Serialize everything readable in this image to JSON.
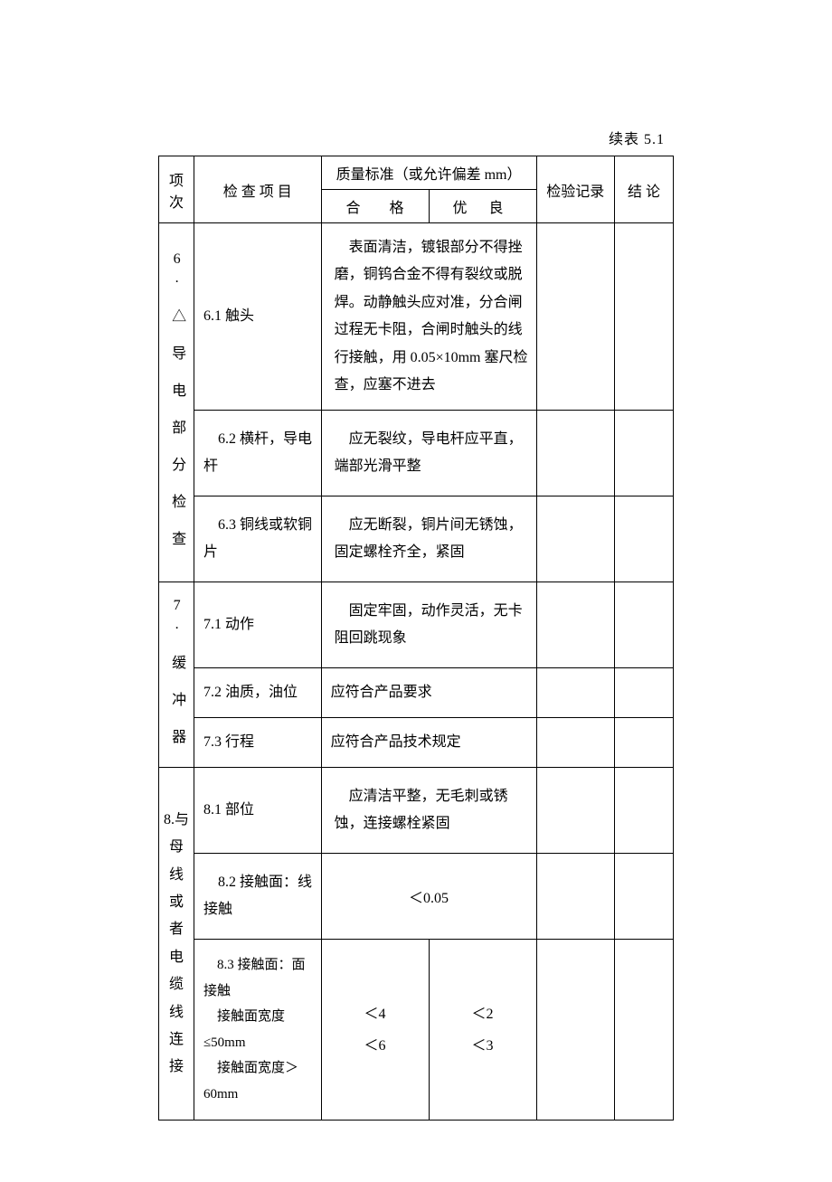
{
  "caption": "续表 5.1",
  "header": {
    "section": "项次",
    "item": "检 查 项 目",
    "standard": "质量标准（或允许偏差 mm）",
    "qualified": "合  格",
    "good": "优  良",
    "record": "检验记录",
    "result": "结 论"
  },
  "section6": {
    "title": "6.\n△\n导\n电\n部\n分\n检\n查",
    "r1": {
      "item": "6.1 触头",
      "std": "　表面清洁，镀银部分不得挫磨，铜钨合金不得有裂纹或脱焊。动静触头应对准，分合闸过程无卡阻，合闸时触头的线行接触，用 0.05×10mm 塞尺检查，应塞不进去"
    },
    "r2": {
      "item": "　6.2 横杆，导电杆",
      "std": "　应无裂纹，导电杆应平直，端部光滑平整"
    },
    "r3": {
      "item": "　6.3 铜线或软铜片",
      "std": "　应无断裂，铜片间无锈蚀，固定螺栓齐全，紧固"
    }
  },
  "section7": {
    "title": "7.\n缓\n冲\n器",
    "r1": {
      "item": "7.1 动作",
      "std": "　固定牢固，动作灵活，无卡阻回跳现象"
    },
    "r2": {
      "item": "7.2 油质，油位",
      "std": "应符合产品要求"
    },
    "r3": {
      "item": "7.3 行程",
      "std": "应符合产品技术规定"
    }
  },
  "section8": {
    "title": "8.与\n母线\n或者\n电缆\n线连\n接",
    "r1": {
      "item": "8.1 部位",
      "std": "　应清洁平整，无毛刺或锈蚀，连接螺栓紧固"
    },
    "r2": {
      "item": "　8.2 接触面：线接触",
      "std": "＜0.05"
    },
    "r3": {
      "item": "　8.3 接触面：面接触\n　接触面宽度≤50mm\n　接触面宽度＞60mm",
      "std_a": "＜4\n＜6",
      "std_b": "＜2\n＜3"
    }
  }
}
